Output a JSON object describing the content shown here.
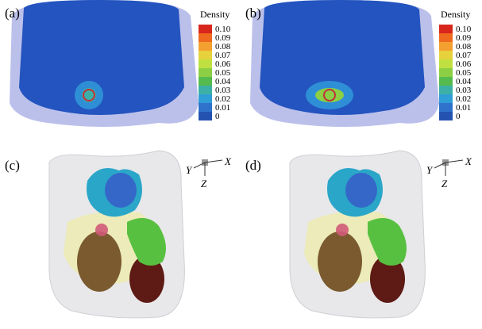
{
  "panels": [
    {
      "label": "(a)",
      "colorbar": {
        "title": "Density",
        "ticks": [
          "0.10",
          "0.09",
          "0.08",
          "0.07",
          "0.06",
          "0.05",
          "0.04",
          "0.03",
          "0.02",
          "0.01",
          "0"
        ]
      }
    },
    {
      "label": "(b)",
      "colorbar": {
        "title": "Density",
        "ticks": [
          "0.10",
          "0.09",
          "0.08",
          "0.07",
          "0.06",
          "0.05",
          "0.04",
          "0.03",
          "0.02",
          "0.01",
          "0"
        ]
      }
    },
    {
      "label": "(c)",
      "axes": {
        "y": "Y",
        "x": "X",
        "z": "Z"
      }
    },
    {
      "label": "(d)",
      "axes": {
        "y": "Y",
        "x": "X",
        "z": "Z"
      }
    }
  ]
}
